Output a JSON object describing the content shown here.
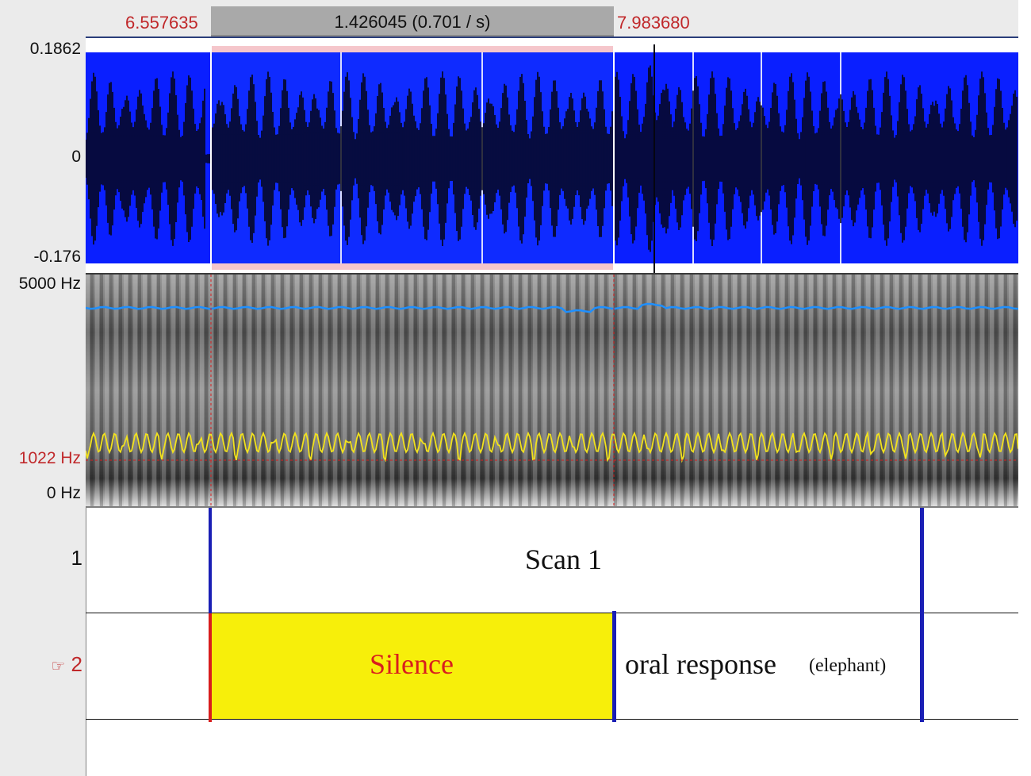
{
  "selection": {
    "start": "6.557635",
    "end": "7.983680",
    "duration": "1.426045 (0.701 / s)"
  },
  "waveform": {
    "y_max": "0.1862",
    "y_zero": "0",
    "y_min": "-0.176"
  },
  "spectrogram": {
    "top_freq": "5000 Hz",
    "cursor_freq": "1022 Hz",
    "bottom_freq": "0 Hz"
  },
  "tiers": [
    {
      "number": "1",
      "is_active": false,
      "intervals": [
        {
          "text": "Scan 1"
        }
      ]
    },
    {
      "number": "2",
      "is_active": true,
      "active_marker": "☞",
      "intervals": [
        {
          "text": "Silence"
        },
        {
          "text": "oral response"
        },
        {
          "text": "(elephant)"
        }
      ]
    }
  ],
  "colors": {
    "waveform_bg": "#0a1fff",
    "selection_pink": "#f5c6cb",
    "pitch_line": "#1e8fff",
    "formant_line": "#f2e21c",
    "boundary_blue": "#1a1fb5",
    "boundary_red": "#d81e1e",
    "silence_fill": "#f7ef0a",
    "time_red": "#c0282a"
  }
}
